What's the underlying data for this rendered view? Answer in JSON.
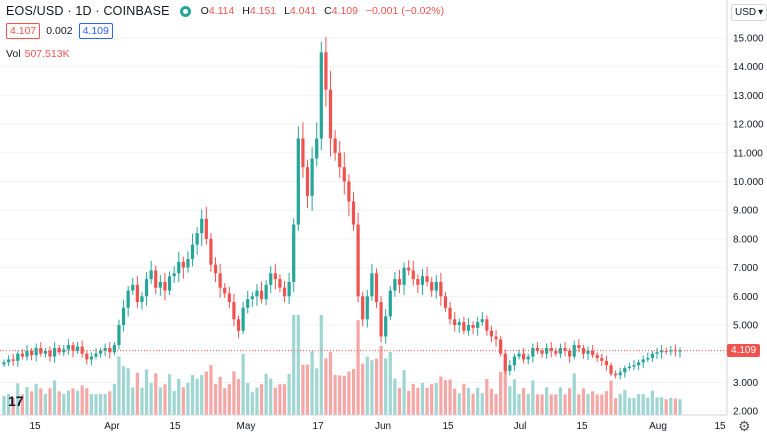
{
  "header": {
    "symbol": "EOS/USD · 1D · COINBASE",
    "ohlc": [
      {
        "key": "O",
        "value": "4.114"
      },
      {
        "key": "H",
        "value": "4.151"
      },
      {
        "key": "L",
        "value": "4.041"
      },
      {
        "key": "C",
        "value": "4.109"
      }
    ],
    "change": "−0.001 (−0.02%)",
    "bid": "4.107",
    "spread": "0.002",
    "ask": "4.109",
    "vol_label": "Vol",
    "vol_value": "507.513K",
    "currency": "USD",
    "currency_icon": "chevron-down-icon",
    "last_price": "4.109",
    "logo": "17"
  },
  "chart_data": {
    "type": "candlestick",
    "y_ticks": [
      "15.000",
      "14.000",
      "13.000",
      "12.000",
      "11.000",
      "10.000",
      "9.000",
      "8.000",
      "7.000",
      "6.000",
      "5.000",
      "4.000",
      "3.000",
      "2.000"
    ],
    "x_ticks": [
      "15",
      "Apr",
      "15",
      "May",
      "17",
      "Jun",
      "15",
      "Jul",
      "15",
      "Aug",
      "15"
    ],
    "colors": {
      "up": "#26a69a",
      "down": "#ef5350",
      "up_volume": "#9fd6d1",
      "down_volume": "#f5a7a6"
    },
    "close": [
      3.7,
      3.8,
      3.75,
      4.0,
      3.9,
      4.1,
      3.95,
      4.2,
      4.0,
      4.1,
      3.9,
      4.2,
      4.05,
      4.15,
      4.3,
      4.1,
      4.25,
      4.0,
      3.8,
      3.9,
      4.0,
      4.1,
      4.2,
      4.05,
      4.3,
      5.0,
      5.6,
      6.2,
      6.4,
      5.8,
      6.0,
      6.6,
      6.9,
      6.3,
      6.5,
      6.2,
      6.7,
      6.8,
      7.2,
      7.0,
      7.3,
      7.8,
      8.2,
      8.7,
      8.0,
      7.1,
      6.8,
      6.3,
      6.1,
      5.8,
      5.2,
      4.8,
      5.6,
      5.9,
      6.0,
      6.2,
      5.9,
      6.4,
      6.8,
      6.6,
      6.3,
      6.0,
      6.5,
      8.5,
      11.5,
      10.5,
      9.5,
      10.8,
      11.5,
      14.5,
      13.2,
      11.5,
      11.0,
      10.5,
      10.0,
      9.3,
      8.5,
      6.0,
      5.2,
      6.0,
      6.8,
      5.8,
      4.6,
      5.3,
      6.2,
      6.6,
      6.4,
      7.0,
      6.9,
      6.6,
      6.4,
      6.7,
      6.5,
      6.2,
      6.5,
      6.0,
      5.6,
      5.2,
      5.0,
      5.1,
      4.8,
      5.0,
      4.9,
      5.1,
      5.2,
      4.8,
      4.6,
      4.5,
      4.0,
      3.4,
      3.6,
      3.9,
      4.0,
      3.8,
      3.9,
      4.2,
      4.1,
      4.0,
      4.2,
      4.1,
      4.0,
      4.2,
      4.1,
      3.9,
      4.3,
      4.2,
      4.0,
      4.1,
      3.95,
      3.85,
      3.75,
      3.6,
      3.3,
      3.25,
      3.35,
      3.5,
      3.55,
      3.6,
      3.7,
      3.8,
      3.85,
      4.0,
      4.05,
      4.1,
      4.08,
      4.12,
      4.09,
      4.11
    ]
  }
}
